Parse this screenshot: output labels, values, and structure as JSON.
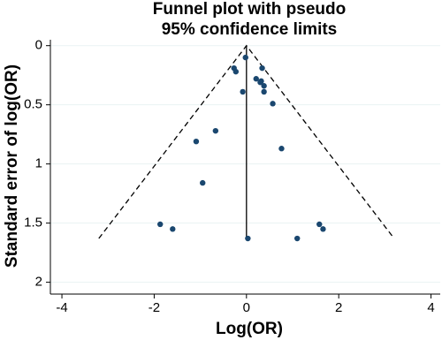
{
  "chart_data": {
    "type": "scatter",
    "title": [
      "Funnel plot with pseudo",
      "95% confidence limits"
    ],
    "x_label": "Log(OR)",
    "y_label": "Standard error of log(OR)",
    "color": "#1a476f",
    "x": [
      -0.02,
      -0.27,
      -0.23,
      0.34,
      0.21,
      0.32,
      0.38,
      0.3,
      0.38,
      -0.08,
      0.57,
      -0.67,
      -1.09,
      0.76,
      -0.95,
      -1.87,
      -1.6,
      1.58,
      1.66,
      0.03,
      1.1
    ],
    "values": [
      0.1,
      0.19,
      0.22,
      0.19,
      0.28,
      0.3,
      0.34,
      0.31,
      0.39,
      0.39,
      0.49,
      0.72,
      0.81,
      0.87,
      1.16,
      1.51,
      1.55,
      1.51,
      1.55,
      1.63,
      1.63
    ],
    "funnel": {
      "x": [
        -3.2,
        0,
        3.2
      ],
      "y": [
        1.63,
        0,
        1.63
      ]
    },
    "summary_line": {
      "x": [
        0,
        0
      ],
      "y": [
        0,
        1.63
      ]
    },
    "xlim": [
      -4.25,
      4.2
    ],
    "ylim": [
      2.1,
      -0.05
    ],
    "xticks": [
      -4,
      -2,
      0,
      2,
      4
    ],
    "yticks": [
      0,
      0.5,
      1,
      1.5,
      2
    ],
    "grid": true
  }
}
